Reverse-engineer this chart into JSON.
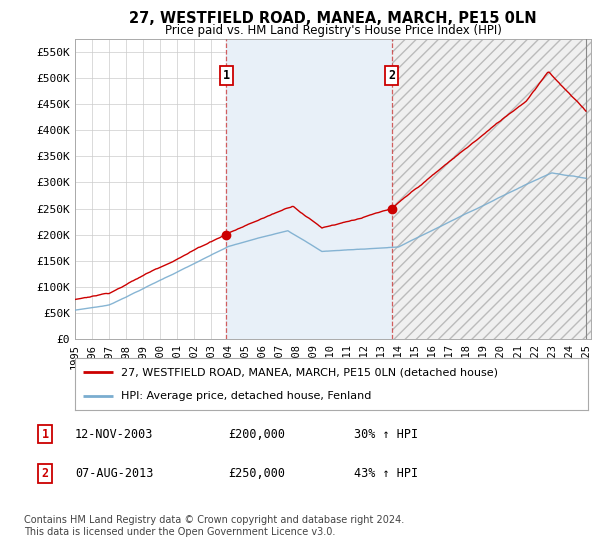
{
  "title": "27, WESTFIELD ROAD, MANEA, MARCH, PE15 0LN",
  "subtitle": "Price paid vs. HM Land Registry's House Price Index (HPI)",
  "legend_line1": "27, WESTFIELD ROAD, MANEA, MARCH, PE15 0LN (detached house)",
  "legend_line2": "HPI: Average price, detached house, Fenland",
  "transaction1_date": "12-NOV-2003",
  "transaction1_price": 200000,
  "transaction1_pct": "30%",
  "transaction2_date": "07-AUG-2013",
  "transaction2_price": 250000,
  "transaction2_pct": "43%",
  "footer": "Contains HM Land Registry data © Crown copyright and database right 2024.\nThis data is licensed under the Open Government Licence v3.0.",
  "red_color": "#cc0000",
  "blue_color": "#7aadcf",
  "shade_blue": "#ddeeff",
  "ylim": [
    0,
    575000
  ],
  "yticks": [
    0,
    50000,
    100000,
    150000,
    200000,
    250000,
    300000,
    350000,
    400000,
    450000,
    500000,
    550000
  ],
  "ytick_labels": [
    "£0",
    "£50K",
    "£100K",
    "£150K",
    "£200K",
    "£250K",
    "£300K",
    "£350K",
    "£400K",
    "£450K",
    "£500K",
    "£550K"
  ],
  "transaction1_x": 2003.87,
  "transaction2_x": 2013.59,
  "xmin": 1995,
  "xmax": 2025.3
}
